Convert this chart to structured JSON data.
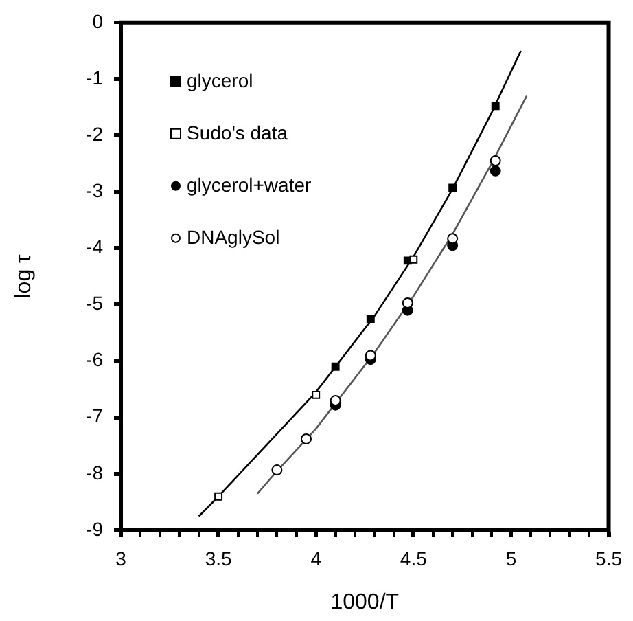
{
  "chart_data": {
    "type": "scatter",
    "xlabel": "1000/T",
    "ylabel": "log τ",
    "legend": "top left",
    "grid": false,
    "xlim": [
      3,
      5.5
    ],
    "ylim": [
      -9,
      0
    ],
    "xticks": [
      3,
      {
        "value": 3.1,
        "label": null
      },
      {
        "value": 3.2,
        "label": null
      },
      {
        "value": 3.3,
        "label": null
      },
      {
        "value": 3.4,
        "label": null
      },
      3.5,
      {
        "value": 3.6,
        "label": null
      },
      {
        "value": 3.7,
        "label": null
      },
      {
        "value": 3.8,
        "label": null
      },
      {
        "value": 3.9,
        "label": null
      },
      4,
      {
        "value": 4.1,
        "label": null
      },
      {
        "value": 4.2,
        "label": null
      },
      {
        "value": 4.3,
        "label": null
      },
      {
        "value": 4.4,
        "label": null
      },
      4.5,
      {
        "value": 4.6,
        "label": null
      },
      {
        "value": 4.7,
        "label": null
      },
      {
        "value": 4.8,
        "label": null
      },
      {
        "value": 4.9,
        "label": null
      },
      5,
      {
        "value": 5.1,
        "label": null
      },
      {
        "value": 5.2,
        "label": null
      },
      {
        "value": 5.3,
        "label": null
      },
      {
        "value": 5.4,
        "label": null
      },
      5.5
    ],
    "yticks": [
      -9,
      -8,
      -7,
      -6,
      -5,
      -4,
      -3,
      -2,
      -1,
      0
    ],
    "series": [
      {
        "type": "line",
        "marker": "none",
        "color": "#000000",
        "x": [
          3.4,
          3.5,
          4.0,
          4.3,
          4.5,
          4.7,
          4.9,
          5.05
        ],
        "values": [
          -8.75,
          -8.4,
          -6.55,
          -5.2,
          -4.15,
          -2.95,
          -1.6,
          -0.5
        ]
      },
      {
        "type": "line",
        "marker": "none",
        "color": "#555555",
        "x": [
          3.7,
          3.8,
          4.0,
          4.3,
          4.5,
          4.7,
          4.9,
          5.08
        ],
        "values": [
          -8.35,
          -7.95,
          -7.2,
          -5.85,
          -4.85,
          -3.75,
          -2.5,
          -1.3
        ]
      },
      {
        "name": "glycerol",
        "marker": "square",
        "color": "#000000",
        "x": [
          4.1,
          4.28,
          4.47,
          4.7,
          4.92
        ],
        "values": [
          -6.1,
          -5.25,
          -4.22,
          -2.93,
          -1.48
        ]
      },
      {
        "name": "Sudo's data",
        "marker": "square",
        "color": "#ffffff",
        "x": [
          3.5,
          4.0,
          4.5
        ],
        "values": [
          -8.4,
          -6.6,
          -4.2
        ]
      },
      {
        "name": "glycerol+water",
        "marker": "circle",
        "color": "#000000",
        "x": [
          4.1,
          4.28,
          4.47,
          4.7,
          4.92
        ],
        "values": [
          -6.78,
          -5.97,
          -5.1,
          -3.95,
          -2.63
        ]
      },
      {
        "name": "DNAglySol",
        "marker": "circle",
        "color": "#ffffff",
        "x": [
          3.8,
          3.95,
          4.1,
          4.28,
          4.47,
          4.7,
          4.92
        ],
        "values": [
          -7.93,
          -7.38,
          -6.7,
          -5.9,
          -4.97,
          -3.83,
          -2.45
        ]
      }
    ]
  }
}
